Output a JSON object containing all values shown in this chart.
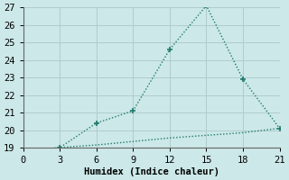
{
  "xlabel": "Humidex (Indice chaleur)",
  "background_color": "#cce8e8",
  "grid_color": "#b0cccc",
  "line1_x": [
    0,
    3,
    6,
    9,
    12,
    15,
    18,
    21
  ],
  "line1_y": [
    18.8,
    19.0,
    20.4,
    21.1,
    24.6,
    27.1,
    22.9,
    20.1
  ],
  "line2_x": [
    0,
    3,
    6,
    9,
    12,
    15,
    18,
    21
  ],
  "line2_y": [
    18.8,
    19.0,
    19.15,
    19.35,
    19.55,
    19.7,
    19.85,
    20.1
  ],
  "line_color": "#1e7a6e",
  "xlim": [
    0,
    21
  ],
  "ylim": [
    19,
    27
  ],
  "xticks": [
    0,
    3,
    6,
    9,
    12,
    15,
    18,
    21
  ],
  "yticks": [
    19,
    20,
    21,
    22,
    23,
    24,
    25,
    26,
    27
  ],
  "marker": "+",
  "marker_size": 5,
  "font_size": 7.5,
  "line_width": 1.0
}
